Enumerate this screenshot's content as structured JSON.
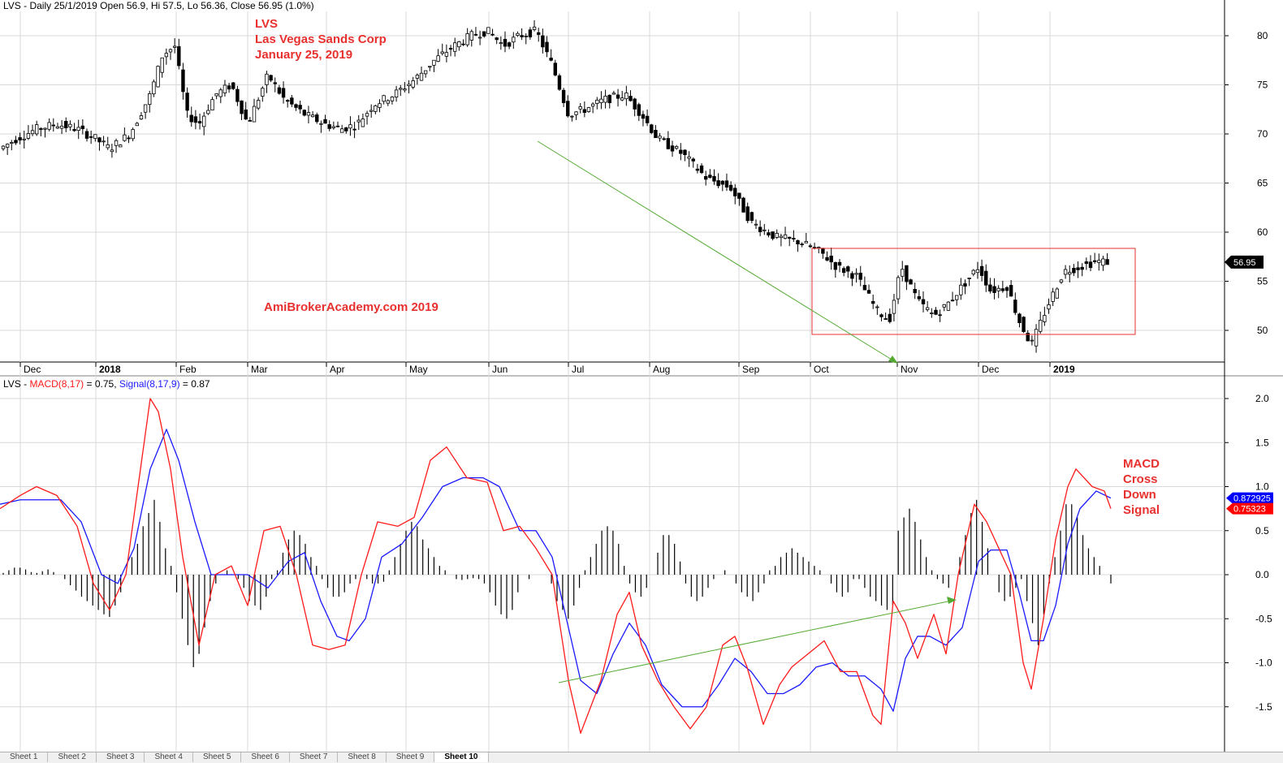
{
  "header_top": {
    "text": "LVS - Daily 25/1/2019 Open 56.9, Hi 57.5, Lo 56.36, Close 56.95 (1.0%)"
  },
  "header_bottom": {
    "prefix": "LVS - ",
    "macd_label": "MACD(8,17)",
    "macd_eq": " = 0.75, ",
    "signal_label": "Signal(8,17,9)",
    "signal_eq": " = 0.87"
  },
  "annotations": {
    "title_line1": "LVS",
    "title_line2": "Las Vegas Sands Corp",
    "title_line3": "January 25, 2019",
    "watermark": "AmiBrokerAcademy.com  2019",
    "macd_note": [
      "MACD",
      "Cross",
      "Down",
      "Signal"
    ]
  },
  "colors": {
    "price_candle": "#000000",
    "macd_line": "#ff1a1a",
    "signal_line": "#1a1aff",
    "histogram": "#000000",
    "annotation_red": "#e8312f",
    "trend_arrow": "#55aa33",
    "range_box": "#e8312f",
    "grid": "#d8d8d8",
    "last_price_badge": "#000000",
    "signal_badge": "#0000ff",
    "macd_badge": "#ff0000"
  },
  "chart_data": [
    {
      "type": "candlestick",
      "x_labels": [
        "Dec",
        "2018",
        "Feb",
        "Mar",
        "Apr",
        "May",
        "Jun",
        "Jul",
        "Aug",
        "Sep",
        "Oct",
        "Nov",
        "Dec",
        "2019"
      ],
      "y_ticks": [
        50,
        55,
        60,
        65,
        70,
        75,
        80
      ],
      "ylim": [
        46,
        84
      ],
      "last_value": 56.95,
      "last_value_label": "56.95",
      "close_path_x": [
        0,
        20,
        45,
        70,
        95,
        118,
        135,
        160,
        185,
        200,
        215,
        230,
        245,
        265,
        285,
        305,
        330,
        350,
        375,
        400,
        420,
        440,
        460,
        485,
        510,
        535,
        560,
        580,
        600,
        620,
        640,
        660,
        680,
        700,
        720,
        745,
        770,
        790,
        810,
        840,
        870,
        900,
        925,
        955,
        985,
        1010,
        1030,
        1055,
        1080,
        1095,
        1110,
        1130,
        1150,
        1165,
        1185,
        1205,
        1220,
        1240,
        1255,
        1270,
        1290,
        1310,
        1330,
        1350,
        1368
      ],
      "close_path_y": [
        68.5,
        69.5,
        70.5,
        71,
        70.5,
        69.5,
        68.5,
        70,
        74,
        78,
        79,
        72,
        71,
        74,
        75,
        71,
        76,
        73.5,
        72,
        71,
        70.5,
        71,
        73,
        74,
        75.5,
        77.5,
        79,
        80,
        80.5,
        79,
        80,
        80.5,
        77,
        72,
        72.5,
        73.5,
        74,
        72,
        69.5,
        68,
        65.5,
        64.5,
        61,
        59.5,
        59,
        58,
        56.5,
        55.5,
        52,
        51,
        56.5,
        53,
        51.5,
        52.5,
        54.5,
        56.5,
        54,
        54.5,
        51,
        48.5,
        52.5,
        56,
        56.5,
        57,
        57
      ]
    },
    {
      "type": "line",
      "title": "MACD(8,17) / Signal(8,17,9)",
      "y_ticks": [
        -1.5,
        -1.0,
        -0.5,
        0.0,
        0.5,
        1.0,
        1.5,
        2.0
      ],
      "ylim": [
        -1.95,
        2.2
      ],
      "series": [
        {
          "name": "MACD(8,17)",
          "last_value": 0.75,
          "last_label": "0.75323",
          "x": [
            0,
            25,
            45,
            70,
            95,
            115,
            135,
            155,
            170,
            185,
            195,
            210,
            225,
            245,
            265,
            285,
            305,
            325,
            345,
            365,
            385,
            405,
            425,
            445,
            465,
            490,
            510,
            530,
            550,
            575,
            600,
            620,
            640,
            660,
            680,
            700,
            715,
            740,
            760,
            775,
            790,
            810,
            830,
            850,
            870,
            890,
            905,
            920,
            940,
            960,
            975,
            995,
            1015,
            1035,
            1055,
            1075,
            1085,
            1100,
            1115,
            1130,
            1150,
            1165,
            1180,
            1200,
            1215,
            1230,
            1245,
            1260,
            1270,
            1285,
            1300,
            1315,
            1325,
            1345,
            1360,
            1368
          ],
          "y": [
            0.75,
            0.9,
            1.0,
            0.9,
            0.55,
            -0.1,
            -0.4,
            0.0,
            1.0,
            2.0,
            1.85,
            1.2,
            0.2,
            -0.8,
            0.0,
            0.1,
            -0.35,
            0.5,
            0.55,
            0.0,
            -0.8,
            -0.85,
            -0.8,
            0.0,
            0.6,
            0.55,
            0.65,
            1.3,
            1.45,
            1.1,
            1.05,
            0.5,
            0.55,
            0.3,
            0.0,
            -1.2,
            -1.8,
            -1.2,
            -0.45,
            -0.2,
            -0.8,
            -1.2,
            -1.5,
            -1.75,
            -1.5,
            -0.8,
            -0.7,
            -1.05,
            -1.7,
            -1.25,
            -1.05,
            -0.9,
            -0.75,
            -1.1,
            -1.1,
            -1.6,
            -1.7,
            -0.3,
            -0.55,
            -0.95,
            -0.45,
            -0.9,
            0.0,
            0.8,
            0.6,
            0.3,
            0.0,
            -1.0,
            -1.3,
            -0.5,
            0.4,
            1.0,
            1.2,
            1.0,
            0.95,
            0.75
          ]
        },
        {
          "name": "Signal(8,17,9)",
          "last_value": 0.87,
          "last_label": "0.872925",
          "x": [
            0,
            25,
            50,
            75,
            100,
            125,
            145,
            165,
            185,
            205,
            220,
            240,
            260,
            285,
            305,
            330,
            355,
            375,
            395,
            415,
            430,
            450,
            470,
            495,
            520,
            545,
            570,
            595,
            615,
            640,
            660,
            680,
            700,
            715,
            735,
            755,
            775,
            795,
            815,
            840,
            865,
            885,
            905,
            925,
            945,
            965,
            985,
            1005,
            1025,
            1045,
            1065,
            1085,
            1100,
            1115,
            1130,
            1145,
            1165,
            1185,
            1205,
            1220,
            1240,
            1255,
            1270,
            1285,
            1300,
            1315,
            1330,
            1350,
            1368
          ],
          "y": [
            0.8,
            0.85,
            0.85,
            0.85,
            0.6,
            0.0,
            -0.1,
            0.3,
            1.2,
            1.65,
            1.3,
            0.6,
            0.0,
            0.0,
            0.0,
            -0.15,
            0.15,
            0.25,
            -0.3,
            -0.7,
            -0.75,
            -0.5,
            0.2,
            0.35,
            0.65,
            1.0,
            1.1,
            1.1,
            1.0,
            0.5,
            0.5,
            0.2,
            -0.6,
            -1.2,
            -1.35,
            -0.9,
            -0.55,
            -0.8,
            -1.25,
            -1.5,
            -1.5,
            -1.25,
            -0.95,
            -1.1,
            -1.35,
            -1.35,
            -1.25,
            -1.05,
            -1.0,
            -1.15,
            -1.15,
            -1.3,
            -1.55,
            -0.95,
            -0.7,
            -0.7,
            -0.8,
            -0.6,
            0.15,
            0.28,
            0.28,
            -0.2,
            -0.75,
            -0.75,
            -0.35,
            0.35,
            0.75,
            0.95,
            0.87
          ]
        }
      ],
      "histogram": [
        0.02,
        0.05,
        0.08,
        0.08,
        0.06,
        0.03,
        0.02,
        0.04,
        0.06,
        0.03,
        0.0,
        -0.05,
        -0.12,
        -0.18,
        -0.25,
        -0.3,
        -0.35,
        -0.4,
        -0.45,
        -0.48,
        -0.35,
        -0.2,
        0.0,
        0.2,
        0.35,
        0.55,
        0.7,
        0.85,
        0.6,
        0.3,
        0.1,
        -0.2,
        -0.5,
        -0.8,
        -1.05,
        -0.9,
        -0.6,
        -0.3,
        -0.1,
        0.0,
        0.05,
        0.0,
        -0.05,
        -0.15,
        -0.3,
        -0.35,
        -0.4,
        -0.25,
        -0.05,
        0.05,
        0.25,
        0.4,
        0.5,
        0.45,
        0.35,
        0.2,
        0.1,
        -0.05,
        -0.15,
        -0.25,
        -0.25,
        -0.2,
        -0.1,
        -0.05,
        0.0,
        -0.05,
        -0.1,
        -0.1,
        -0.08,
        0.05,
        0.2,
        0.35,
        0.5,
        0.6,
        0.55,
        0.4,
        0.3,
        0.2,
        0.1,
        0.05,
        0.0,
        -0.05,
        -0.06,
        -0.05,
        -0.04,
        -0.05,
        -0.1,
        -0.2,
        -0.35,
        -0.45,
        -0.5,
        -0.4,
        -0.2,
        0.0,
        -0.05,
        0.0,
        0.0,
        0.0,
        -0.1,
        -0.3,
        -0.4,
        -0.5,
        -0.35,
        -0.15,
        0.05,
        0.2,
        0.35,
        0.5,
        0.55,
        0.5,
        0.35,
        0.1,
        -0.1,
        -0.2,
        -0.25,
        -0.15,
        0.0,
        0.25,
        0.45,
        0.45,
        0.35,
        0.15,
        -0.1,
        -0.25,
        -0.3,
        -0.25,
        -0.15,
        -0.05,
        0.0,
        0.05,
        0.0,
        -0.1,
        -0.2,
        -0.25,
        -0.3,
        -0.2,
        -0.1,
        0.05,
        0.1,
        0.2,
        0.25,
        0.3,
        0.25,
        0.2,
        0.15,
        0.1,
        0.05,
        0.0,
        -0.1,
        -0.2,
        -0.25,
        -0.2,
        -0.05,
        -0.05,
        -0.15,
        -0.25,
        -0.3,
        -0.35,
        -0.4,
        -0.35,
        0.5,
        0.65,
        0.75,
        0.6,
        0.4,
        0.2,
        0.05,
        -0.05,
        -0.1,
        -0.15,
        0.0,
        0.2,
        0.45,
        0.7,
        0.85,
        0.6,
        0.3,
        0.0,
        -0.2,
        -0.3,
        -0.25,
        -0.15,
        -0.05,
        -0.3,
        -0.55,
        -0.8,
        -0.45,
        -0.1,
        0.2,
        0.5,
        0.8,
        0.8,
        0.65,
        0.45,
        0.3,
        0.2,
        0.1,
        0.0,
        -0.1
      ]
    }
  ],
  "sheet_tabs": [
    "Sheet 1",
    "Sheet 2",
    "Sheet 3",
    "Sheet 4",
    "Sheet 5",
    "Sheet 6",
    "Sheet 7",
    "Sheet 8",
    "Sheet 9",
    "Sheet 10"
  ],
  "active_tab": "Sheet 10"
}
